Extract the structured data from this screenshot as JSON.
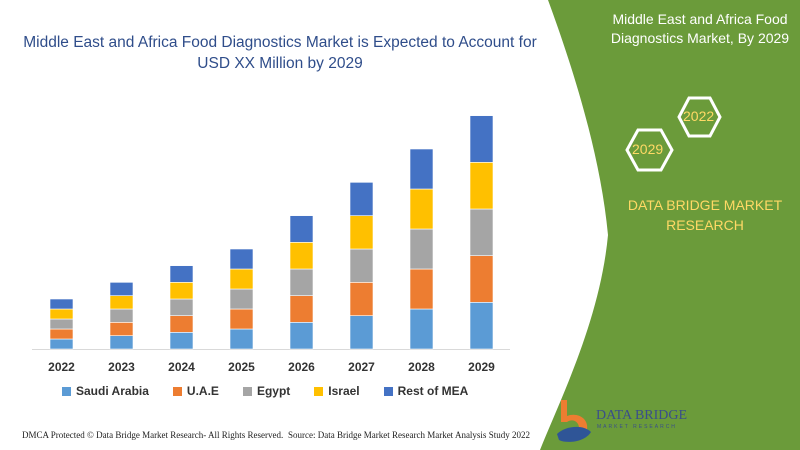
{
  "chart_data": {
    "type": "bar",
    "stacked": true,
    "title": "Middle East and Africa Food Diagnostics Market is Expected to Account for USD XX Million by 2029",
    "categories": [
      "2022",
      "2023",
      "2024",
      "2025",
      "2026",
      "2027",
      "2028",
      "2029"
    ],
    "series": [
      {
        "name": "Saudi Arabia",
        "color": "#5b9bd5",
        "values": [
          3,
          4,
          5,
          6,
          8,
          10,
          12,
          14
        ]
      },
      {
        "name": "U.A.E",
        "color": "#ed7d31",
        "values": [
          3,
          4,
          5,
          6,
          8,
          10,
          12,
          14
        ]
      },
      {
        "name": "Egypt",
        "color": "#a5a5a5",
        "values": [
          3,
          4,
          5,
          6,
          8,
          10,
          12,
          14
        ]
      },
      {
        "name": "Israel",
        "color": "#ffc000",
        "values": [
          3,
          4,
          5,
          6,
          8,
          10,
          12,
          14
        ]
      },
      {
        "name": "Rest of MEA",
        "color": "#4472c4",
        "values": [
          3,
          4,
          5,
          6,
          8,
          10,
          12,
          14
        ]
      }
    ],
    "grid": false,
    "legend": "bottom"
  },
  "panel": {
    "title": "Middle East and Africa Food Diagnostics Market, By 2029",
    "hex_a": "2022",
    "hex_b": "2029",
    "brand": "DATA BRIDGE MARKET RESEARCH",
    "color": "#6b9b3a"
  },
  "logo": {
    "name": "DATA BRIDGE",
    "sub": "MARKET RESEARCH"
  },
  "footer": {
    "left": "DMCA Protected © Data Bridge Market Research- All Rights Reserved.",
    "right": "Source: Data Bridge Market Research Market Analysis Study 2022"
  }
}
